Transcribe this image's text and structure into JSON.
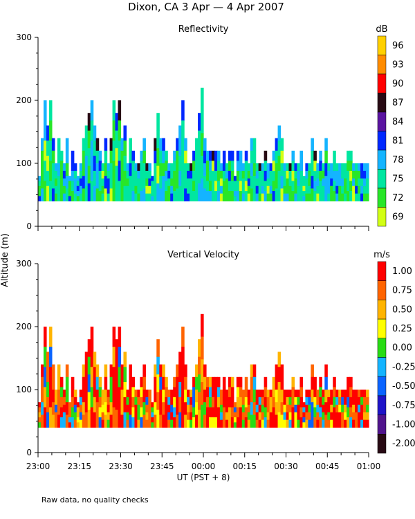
{
  "title": "Dixon, CA  3 Apr —  4 Apr 2007",
  "ylabel": "Altitude (m)",
  "xlabel": "UT  (PST + 8)",
  "footer_note": "Raw data, no quality checks",
  "time_axis": {
    "range_minutes": [
      0,
      120
    ],
    "ticks_minutes": [
      0,
      15,
      30,
      45,
      60,
      75,
      90,
      105,
      120
    ],
    "tick_labels": [
      "23:00",
      "23:15",
      "23:30",
      "23:45",
      "00:00",
      "00:15",
      "00:30",
      "00:45",
      "01:00"
    ]
  },
  "chart_data": [
    {
      "type": "heatmap",
      "name": "reflectivity",
      "title": "Reflectivity",
      "ylim": [
        0,
        300
      ],
      "yticks": [
        0,
        100,
        200,
        300
      ],
      "colorbar": {
        "unit": "dB",
        "labels": [
          "96",
          "93",
          "90",
          "87",
          "84",
          "81",
          "78",
          "75",
          "72",
          "69"
        ],
        "colors": [
          "#ffd000",
          "#ff8c00",
          "#ff0000",
          "#280a14",
          "#5a14a0",
          "#0028ff",
          "#14b4ff",
          "#00e6a0",
          "#28e628",
          "#d2ff14"
        ]
      },
      "data_floor_m": 40,
      "heights_m": [
        80,
        140,
        200,
        160,
        200,
        140,
        100,
        140,
        120,
        100,
        140,
        80,
        120,
        100,
        80,
        100,
        140,
        160,
        180,
        200,
        160,
        140,
        120,
        100,
        140,
        100,
        140,
        200,
        180,
        200,
        140,
        160,
        100,
        140,
        120,
        100,
        100,
        120,
        140,
        100,
        100,
        80,
        140,
        180,
        140,
        140,
        120,
        100,
        100,
        120,
        140,
        160,
        200,
        140,
        100,
        100,
        120,
        140,
        180,
        220,
        140,
        120,
        120,
        120,
        120,
        120,
        100,
        120,
        100,
        120,
        120,
        80,
        120,
        120,
        100,
        120,
        100,
        140,
        140,
        100,
        100,
        100,
        120,
        100,
        100,
        120,
        140,
        160,
        140,
        100,
        100,
        100,
        120,
        100,
        100,
        120,
        80,
        100,
        100,
        140,
        120,
        100,
        120,
        100,
        140,
        100,
        100,
        120,
        100,
        100,
        100,
        100,
        120,
        120,
        100,
        100,
        100,
        100,
        100,
        100
      ]
    },
    {
      "type": "heatmap",
      "name": "vertical_velocity",
      "title": "Vertical Velocity",
      "ylim": [
        0,
        300
      ],
      "yticks": [
        0,
        100,
        200,
        300
      ],
      "colorbar": {
        "unit": "m/s",
        "labels": [
          "1.00",
          "0.75",
          "0.50",
          "0.25",
          "0.00",
          "-0.25",
          "-0.50",
          "-0.75",
          "-1.00",
          "-2.00"
        ],
        "colors": [
          "#ff0000",
          "#ff6400",
          "#ffb400",
          "#ffff00",
          "#28dc14",
          "#14b4ff",
          "#0a64ff",
          "#1e14c8",
          "#50148c",
          "#280a14"
        ]
      },
      "data_floor_m": 40,
      "heights_m": [
        80,
        140,
        200,
        160,
        200,
        140,
        100,
        140,
        120,
        100,
        140,
        80,
        120,
        100,
        80,
        100,
        140,
        160,
        180,
        200,
        160,
        140,
        120,
        100,
        140,
        100,
        140,
        200,
        180,
        200,
        140,
        160,
        100,
        140,
        120,
        100,
        100,
        120,
        140,
        100,
        100,
        80,
        140,
        180,
        140,
        140,
        120,
        100,
        100,
        120,
        140,
        160,
        200,
        140,
        100,
        100,
        120,
        140,
        180,
        220,
        140,
        120,
        120,
        120,
        120,
        120,
        100,
        120,
        100,
        120,
        120,
        80,
        120,
        120,
        100,
        120,
        100,
        140,
        140,
        100,
        100,
        100,
        120,
        100,
        100,
        120,
        140,
        160,
        140,
        100,
        100,
        100,
        120,
        100,
        100,
        120,
        80,
        100,
        100,
        140,
        120,
        100,
        120,
        100,
        140,
        100,
        100,
        120,
        100,
        100,
        100,
        100,
        120,
        120,
        100,
        100,
        100,
        100,
        100,
        100
      ]
    }
  ]
}
